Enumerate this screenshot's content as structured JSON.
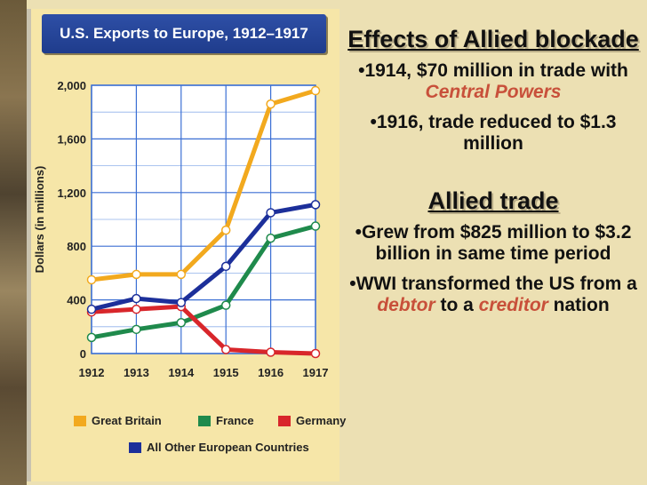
{
  "chart_data": {
    "type": "line",
    "title": "U.S. Exports to Europe, 1912–1917",
    "ylabel": "Dollars (in millions)",
    "xlabel": "",
    "x": [
      "1912",
      "1913",
      "1914",
      "1915",
      "1916",
      "1917"
    ],
    "yticks": [
      "2,000",
      "1,600",
      "1,200",
      "800",
      "400",
      "0"
    ],
    "ytick_values": [
      2000,
      1600,
      1200,
      800,
      400,
      0
    ],
    "ylim": [
      0,
      2000
    ],
    "grid": true,
    "series": [
      {
        "name": "Great Britain",
        "color": "#f2a91e",
        "values": [
          550,
          590,
          590,
          920,
          1860,
          1960
        ]
      },
      {
        "name": "France",
        "color": "#1f8a4c",
        "values": [
          120,
          180,
          230,
          360,
          860,
          950
        ]
      },
      {
        "name": "Germany",
        "color": "#d8262b",
        "values": [
          310,
          330,
          350,
          30,
          10,
          0
        ]
      },
      {
        "name": "All Other European Countries",
        "color": "#1c2f9a",
        "values": [
          330,
          410,
          380,
          650,
          1050,
          1110
        ]
      }
    ]
  },
  "panel": {
    "heading_blockade": "Effects of Allied blockade",
    "bullet_1_pre": "•1914, $70 million in trade with ",
    "bullet_1_em": "Central Powers",
    "bullet_2": "•1916, trade reduced to $1.3 million",
    "heading_trade": "Allied trade",
    "bullet_3": "•Grew from $825 million to $3.2 billion in same time period",
    "bullet_4_pre": "•WWI transformed the US from a ",
    "bullet_4_em1": "debtor",
    "bullet_4_mid": " to a ",
    "bullet_4_em2": "creditor",
    "bullet_4_post": " nation"
  }
}
